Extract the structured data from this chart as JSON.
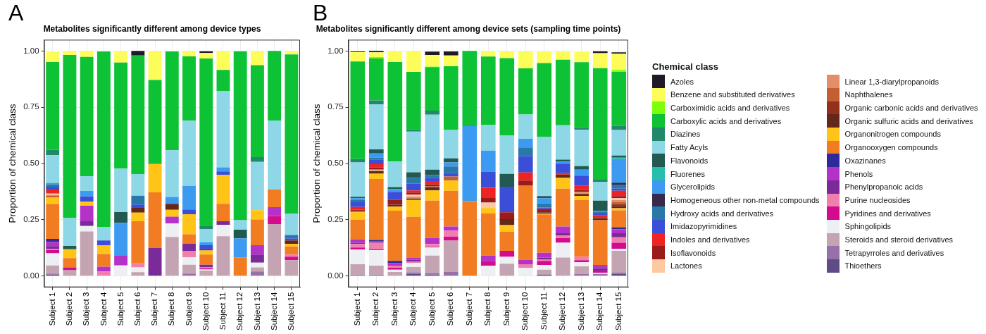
{
  "chart_data": [
    {
      "type": "bar",
      "stacked": true,
      "title": "Metabolites significantly different among device types",
      "ylabel": "Proportion of chemical class",
      "annotations": [
        "A"
      ],
      "categories": [
        "Subject 1",
        "Subject 2",
        "Subject 3",
        "Subject 4",
        "Subject 5",
        "Subject 6",
        "Subject 7",
        "Subject 8",
        "Subject 9",
        "Subject 10",
        "Subject 11",
        "Subject 12",
        "Subject 13",
        "Subject 14",
        "Subject 15"
      ],
      "ylim": [
        -0.05,
        1.05
      ],
      "yticks": [
        {
          "value": 0,
          "label": "0.00"
        },
        {
          "value": 0.25,
          "label": "0.25"
        },
        {
          "value": 0.5,
          "label": "0.50"
        },
        {
          "value": 0.75,
          "label": "0.75"
        },
        {
          "value": 1,
          "label": "1.00"
        }
      ],
      "grid": true,
      "series": [
        {
          "color": "#5e4b87",
          "values": [
            0.006,
            0,
            0,
            0,
            0,
            0,
            0,
            0,
            0,
            0,
            0,
            0,
            0,
            0,
            0
          ]
        },
        {
          "color": "#9670a6",
          "values": [
            0.005,
            0,
            0,
            0,
            0,
            0,
            0,
            0,
            0.011,
            0,
            0,
            0,
            0.02,
            0,
            0
          ]
        },
        {
          "color": "#c4a4b2",
          "values": [
            0.036,
            0.026,
            0.198,
            0,
            0,
            0.017,
            0,
            0.174,
            0.039,
            0.024,
            0.177,
            0,
            0.018,
            0.231,
            0.07
          ]
        },
        {
          "color": "#eeeff3",
          "values": [
            0.054,
            0,
            0.024,
            0,
            0.047,
            0.021,
            0,
            0.06,
            0.033,
            0.005,
            0.051,
            0,
            0.021,
            0,
            0
          ]
        },
        {
          "color": "#d40b8f",
          "values": [
            0.015,
            0.012,
            0,
            0,
            0,
            0,
            0,
            0,
            0,
            0.006,
            0,
            0,
            0,
            0.036,
            0.016
          ]
        },
        {
          "color": "#f07fad",
          "values": [
            0.005,
            0,
            0,
            0.02,
            0,
            0.018,
            0,
            0,
            0.027,
            0.003,
            0,
            0,
            0,
            0,
            0.009
          ]
        },
        {
          "color": "#7b2a9a",
          "values": [
            0.012,
            0,
            0.021,
            0,
            0,
            0,
            0.125,
            0,
            0.033,
            0.012,
            0.015,
            0,
            0.036,
            0,
            0
          ]
        },
        {
          "color": "#b432c8",
          "values": [
            0.019,
            0,
            0.069,
            0.021,
            0.045,
            0,
            0,
            0.03,
            0,
            0,
            0,
            0,
            0.042,
            0.039,
            0
          ]
        },
        {
          "color": "#2e2a9c",
          "values": [
            0.013,
            0,
            0,
            0,
            0,
            0,
            0,
            0,
            0,
            0,
            0,
            0,
            0,
            0,
            0
          ]
        },
        {
          "color": "#f27c21",
          "values": [
            0.155,
            0.042,
            0,
            0.057,
            0,
            0.187,
            0.247,
            0,
            0.042,
            0.045,
            0.078,
            0.083,
            0.114,
            0.078,
            0.036
          ]
        },
        {
          "color": "#ffc415",
          "values": [
            0.03,
            0.039,
            0.018,
            0.039,
            0,
            0.039,
            0.126,
            0.03,
            0.09,
            0.018,
            0.129,
            0,
            0.042,
            0,
            0.012
          ]
        },
        {
          "color": "#64281a",
          "values": [
            0,
            0,
            0,
            0,
            0,
            0.021,
            0,
            0.027,
            0,
            0.006,
            0,
            0,
            0,
            0,
            0.015
          ]
        },
        {
          "color": "#93301c",
          "values": [
            0,
            0,
            0,
            0,
            0,
            0,
            0,
            0,
            0,
            0,
            0,
            0,
            0,
            0,
            0
          ]
        },
        {
          "color": "#c45f33",
          "values": [
            0.006,
            0,
            0,
            0,
            0,
            0,
            0,
            0,
            0,
            0,
            0,
            0,
            0,
            0,
            0
          ]
        },
        {
          "color": "#e38e66",
          "values": [
            0.005,
            0,
            0,
            0,
            0,
            0,
            0,
            0,
            0,
            0,
            0,
            0,
            0,
            0,
            0
          ]
        },
        {
          "color": "#fdc9a0",
          "values": [
            0.005,
            0,
            0,
            0,
            0,
            0,
            0,
            0,
            0,
            0,
            0,
            0,
            0,
            0,
            0
          ]
        },
        {
          "color": "#9b1a1a",
          "values": [
            0,
            0,
            0,
            0,
            0,
            0,
            0,
            0,
            0,
            0,
            0,
            0,
            0,
            0,
            0
          ]
        },
        {
          "color": "#f02323",
          "values": [
            0.018,
            0,
            0,
            0,
            0,
            0,
            0,
            0,
            0,
            0,
            0,
            0,
            0,
            0,
            0
          ]
        },
        {
          "color": "#3a4ed8",
          "values": [
            0.013,
            0,
            0.024,
            0.021,
            0,
            0.015,
            0,
            0,
            0.021,
            0.018,
            0.015,
            0,
            0,
            0,
            0.009
          ]
        },
        {
          "color": "#2878a8",
          "values": [
            0.011,
            0,
            0,
            0,
            0,
            0.039,
            0,
            0,
            0,
            0,
            0,
            0,
            0,
            0,
            0.015
          ]
        },
        {
          "color": "#372a4d",
          "values": [
            0,
            0,
            0,
            0,
            0,
            0,
            0,
            0,
            0,
            0,
            0,
            0,
            0,
            0,
            0
          ]
        },
        {
          "color": "#3c9af1",
          "values": [
            0.006,
            0,
            0.024,
            0,
            0.144,
            0,
            0,
            0.03,
            0.105,
            0.012,
            0.018,
            0.084,
            0,
            0,
            0
          ]
        },
        {
          "color": "#26bfab",
          "values": [
            0,
            0,
            0,
            0,
            0,
            0,
            0,
            0,
            0,
            0,
            0,
            0,
            0,
            0,
            0
          ]
        },
        {
          "color": "#225a52",
          "values": [
            0,
            0.015,
            0,
            0,
            0.048,
            0,
            0,
            0,
            0,
            0,
            0,
            0.039,
            0,
            0,
            0
          ]
        },
        {
          "color": "#8dd7e7",
          "values": [
            0.123,
            0.123,
            0.066,
            0.06,
            0.193,
            0.096,
            0,
            0.208,
            0.289,
            0.06,
            0.34,
            0.042,
            0.214,
            0.307,
            0.096
          ]
        },
        {
          "color": "#21896a",
          "values": [
            0.024,
            0,
            0,
            0,
            0,
            0,
            0,
            0,
            0,
            0.012,
            0,
            0,
            0.021,
            0,
            0
          ]
        },
        {
          "color": "#0ec235",
          "values": [
            0.39,
            0.725,
            0.53,
            0.78,
            0.472,
            0.527,
            0.373,
            0.439,
            0.286,
            0.746,
            0.093,
            0.751,
            0.409,
            0.309,
            0.707
          ]
        },
        {
          "color": "#7dff0a",
          "values": [
            0,
            0,
            0,
            0,
            0,
            0,
            0,
            0,
            0,
            0,
            0,
            0,
            0,
            0,
            0
          ]
        },
        {
          "color": "#fdfd5a",
          "values": [
            0.044,
            0.017,
            0.026,
            0,
            0.05,
            0,
            0.128,
            0,
            0.023,
            0.024,
            0.083,
            0,
            0.062,
            0,
            0.014
          ]
        },
        {
          "color": "#211a26",
          "values": [
            0,
            0,
            0,
            0,
            0,
            0.02,
            0,
            0,
            0,
            0.008,
            0,
            0,
            0,
            0,
            0
          ]
        }
      ]
    },
    {
      "type": "bar",
      "stacked": true,
      "title": "Metabolites significantly different among device sets (sampling time points)",
      "ylabel": "Proportion of chemical class",
      "annotations": [
        "B"
      ],
      "categories": [
        "Subject 1",
        "Subject 2",
        "Subject 3",
        "Subject 4",
        "Subject 5",
        "Subject 6",
        "Subject 7",
        "Subject 8",
        "Subject 9",
        "Subject 10",
        "Subject 11",
        "Subject 12",
        "Subject 13",
        "Subject 14",
        "Subject 15"
      ],
      "ylim": [
        -0.05,
        1.05
      ],
      "yticks": [
        {
          "value": 0,
          "label": "0.00"
        },
        {
          "value": 0.25,
          "label": "0.25"
        },
        {
          "value": 0.5,
          "label": "0.50"
        },
        {
          "value": 0.75,
          "label": "0.75"
        },
        {
          "value": 1,
          "label": "1.00"
        }
      ],
      "grid": true,
      "legend": "right",
      "legend_title": "Chemical class",
      "series": [
        {
          "name": "Thioethers",
          "color": "#5e4b87",
          "values": [
            0,
            0,
            0,
            0.009,
            0.006,
            0,
            0,
            0,
            0,
            0,
            0.006,
            0,
            0,
            0,
            0.009
          ]
        },
        {
          "name": "Tetrapyrroles and derivatives",
          "color": "#9670a6",
          "values": [
            0.006,
            0.006,
            0,
            0.007,
            0.007,
            0.018,
            0,
            0,
            0,
            0,
            0,
            0,
            0.009,
            0.009,
            0.006
          ]
        },
        {
          "name": "Steroids and steroid derivatives",
          "color": "#c4a4b2",
          "values": [
            0.046,
            0.04,
            0.018,
            0.024,
            0.078,
            0.139,
            0,
            0,
            0.055,
            0,
            0.022,
            0.082,
            0.034,
            0,
            0.097
          ]
        },
        {
          "name": "Sphingolipids",
          "color": "#eeeff3",
          "values": [
            0.066,
            0.069,
            0.01,
            0.018,
            0.036,
            0,
            0,
            0.046,
            0.03,
            0.037,
            0.021,
            0.066,
            0.018,
            0.006,
            0.009
          ]
        },
        {
          "name": "Pyridines and derivatives",
          "color": "#d40b8f",
          "values": [
            0.009,
            0.003,
            0.009,
            0,
            0.003,
            0.018,
            0,
            0.021,
            0.027,
            0,
            0.018,
            0.021,
            0.009,
            0.009,
            0.027
          ]
        },
        {
          "name": "Purine nucleosides",
          "color": "#f07fad",
          "values": [
            0.015,
            0.03,
            0.009,
            0.006,
            0.012,
            0.027,
            0,
            0,
            0,
            0.015,
            0.006,
            0.012,
            0.015,
            0,
            0.024
          ]
        },
        {
          "name": "Phenylpropanoic acids",
          "color": "#7b2a9a",
          "values": [
            0.006,
            0.006,
            0,
            0.009,
            0,
            0,
            0,
            0,
            0,
            0,
            0.009,
            0.009,
            0,
            0.01,
            0.018
          ]
        },
        {
          "name": "Phenols",
          "color": "#b432c8",
          "values": [
            0.015,
            0,
            0.012,
            0.009,
            0.027,
            0.018,
            0,
            0.024,
            0,
            0.021,
            0.021,
            0.03,
            0,
            0.015,
            0.018
          ]
        },
        {
          "name": "Oxazinanes",
          "color": "#2e2a9c",
          "values": [
            0,
            0.006,
            0.009,
            0,
            0,
            0,
            0,
            0,
            0,
            0,
            0,
            0,
            0,
            0,
            0.009
          ]
        },
        {
          "name": "Organooxygen compounds",
          "color": "#f27c21",
          "values": [
            0.087,
            0.271,
            0.223,
            0.181,
            0.166,
            0.159,
            0.333,
            0.187,
            0.084,
            0.33,
            0.171,
            0.168,
            0.253,
            0.199,
            0.075
          ]
        },
        {
          "name": "Organonitrogen compounds",
          "color": "#ffc415",
          "values": [
            0.033,
            0.024,
            0.018,
            0.075,
            0.045,
            0.045,
            0,
            0.024,
            0.03,
            0,
            0.003,
            0.048,
            0.018,
            0,
            0.009
          ]
        },
        {
          "name": "Organic sulfuric acids and derivatives",
          "color": "#64281a",
          "values": [
            0,
            0.012,
            0.009,
            0.006,
            0.015,
            0,
            0,
            0,
            0.027,
            0,
            0.006,
            0.015,
            0.009,
            0.009,
            0.009
          ]
        },
        {
          "name": "Organic carbonic acids and derivatives",
          "color": "#93301c",
          "values": [
            0,
            0,
            0,
            0,
            0,
            0,
            0,
            0,
            0,
            0,
            0,
            0,
            0,
            0,
            0.009
          ]
        },
        {
          "name": "Naphthalenes",
          "color": "#c45f33",
          "values": [
            0.006,
            0,
            0,
            0,
            0.003,
            0.018,
            0,
            0,
            0,
            0,
            0,
            0,
            0,
            0,
            0.009
          ]
        },
        {
          "name": "Linear 1,3-diarylpropanoids",
          "color": "#e38e66",
          "values": [
            0,
            0,
            0,
            0.009,
            0,
            0,
            0,
            0,
            0,
            0,
            0,
            0,
            0.009,
            0,
            0.009
          ]
        },
        {
          "name": "Lactones",
          "color": "#fdc9a0",
          "values": [
            0,
            0.006,
            0,
            0.009,
            0,
            0,
            0,
            0.024,
            0,
            0,
            0,
            0,
            0,
            0,
            0.009
          ]
        },
        {
          "name": "Isoflavonoids",
          "color": "#9b1a1a",
          "values": [
            0.006,
            0.009,
            0.021,
            0.009,
            0.009,
            0,
            0,
            0.021,
            0.03,
            0.021,
            0.015,
            0,
            0.009,
            0,
            0.009
          ]
        },
        {
          "name": "Indoles and derivatives",
          "color": "#f02323",
          "values": [
            0.012,
            0.015,
            0,
            0.009,
            0.015,
            0,
            0,
            0.045,
            0,
            0.036,
            0,
            0.006,
            0.018,
            0.012,
            0.024
          ]
        },
        {
          "name": "Imidazopyrimidines",
          "color": "#3a4ed8",
          "values": [
            0.021,
            0.021,
            0.036,
            0.03,
            0.015,
            0.015,
            0,
            0.072,
            0.114,
            0.072,
            0.006,
            0.042,
            0.045,
            0.009,
            0.009
          ]
        },
        {
          "name": "Hydroxy acids and derivatives",
          "color": "#2878a8",
          "values": [
            0.009,
            0.009,
            0,
            0.027,
            0.012,
            0.03,
            0,
            0,
            0,
            0.039,
            0.018,
            0,
            0,
            0.006,
            0.018
          ]
        },
        {
          "name": "Homogeneous other non-metal compounds",
          "color": "#372a4d",
          "values": [
            0,
            0,
            0,
            0,
            0,
            0,
            0,
            0,
            0,
            0,
            0,
            0,
            0,
            0,
            0.009
          ]
        },
        {
          "name": "Glycerolipids",
          "color": "#3c9af1",
          "values": [
            0.009,
            0.018,
            0.012,
            0,
            0,
            0.018,
            0.333,
            0.093,
            0,
            0.039,
            0.024,
            0.009,
            0.027,
            0.006,
            0.105
          ]
        },
        {
          "name": "Fluorenes",
          "color": "#26bfab",
          "values": [
            0,
            0,
            0,
            0,
            0,
            0,
            0,
            0,
            0,
            0,
            0,
            0,
            0,
            0,
            0.006
          ]
        },
        {
          "name": "Flavonoids",
          "color": "#225a52",
          "values": [
            0.006,
            0.018,
            0.009,
            0.024,
            0.024,
            0.018,
            0,
            0,
            0.057,
            0,
            0.009,
            0.009,
            0.015,
            0.045,
            0.009
          ]
        },
        {
          "name": "Fatty Acyls",
          "color": "#8dd7e7",
          "values": [
            0.153,
            0.199,
            0.114,
            0.181,
            0.244,
            0.126,
            0,
            0.114,
            0.171,
            0.108,
            0.264,
            0.153,
            0.162,
            0.084,
            0.114
          ]
        },
        {
          "name": "Diazines",
          "color": "#21896a",
          "values": [
            0.015,
            0.018,
            0,
            0.009,
            0.018,
            0,
            0,
            0,
            0,
            0,
            0,
            0,
            0.009,
            0.009,
            0.018
          ]
        },
        {
          "name": "Carboxylic acids and derivatives",
          "color": "#0ec235",
          "values": [
            0.433,
            0.187,
            0.442,
            0.256,
            0.193,
            0.283,
            0.334,
            0.304,
            0.343,
            0.205,
            0.327,
            0.291,
            0.291,
            0.496,
            0.24
          ]
        },
        {
          "name": "Carboximidic acids and derivatives",
          "color": "#7dff0a",
          "values": [
            0,
            0.006,
            0,
            0,
            0.003,
            0,
            0,
            0,
            0,
            0,
            0,
            0,
            0,
            0,
            0.009
          ]
        },
        {
          "name": "Benzene and substituted derivatives",
          "color": "#fdfd5a",
          "values": [
            0.042,
            0.021,
            0.048,
            0.093,
            0.051,
            0.048,
            0,
            0.024,
            0.03,
            0.075,
            0.051,
            0.036,
            0.045,
            0.066,
            0.072
          ]
        },
        {
          "name": "Azoles",
          "color": "#211a26",
          "values": [
            0.003,
            0.006,
            0,
            0,
            0.015,
            0.018,
            0,
            0,
            0,
            0,
            0,
            0,
            0,
            0.009,
            0.006
          ]
        }
      ]
    }
  ]
}
